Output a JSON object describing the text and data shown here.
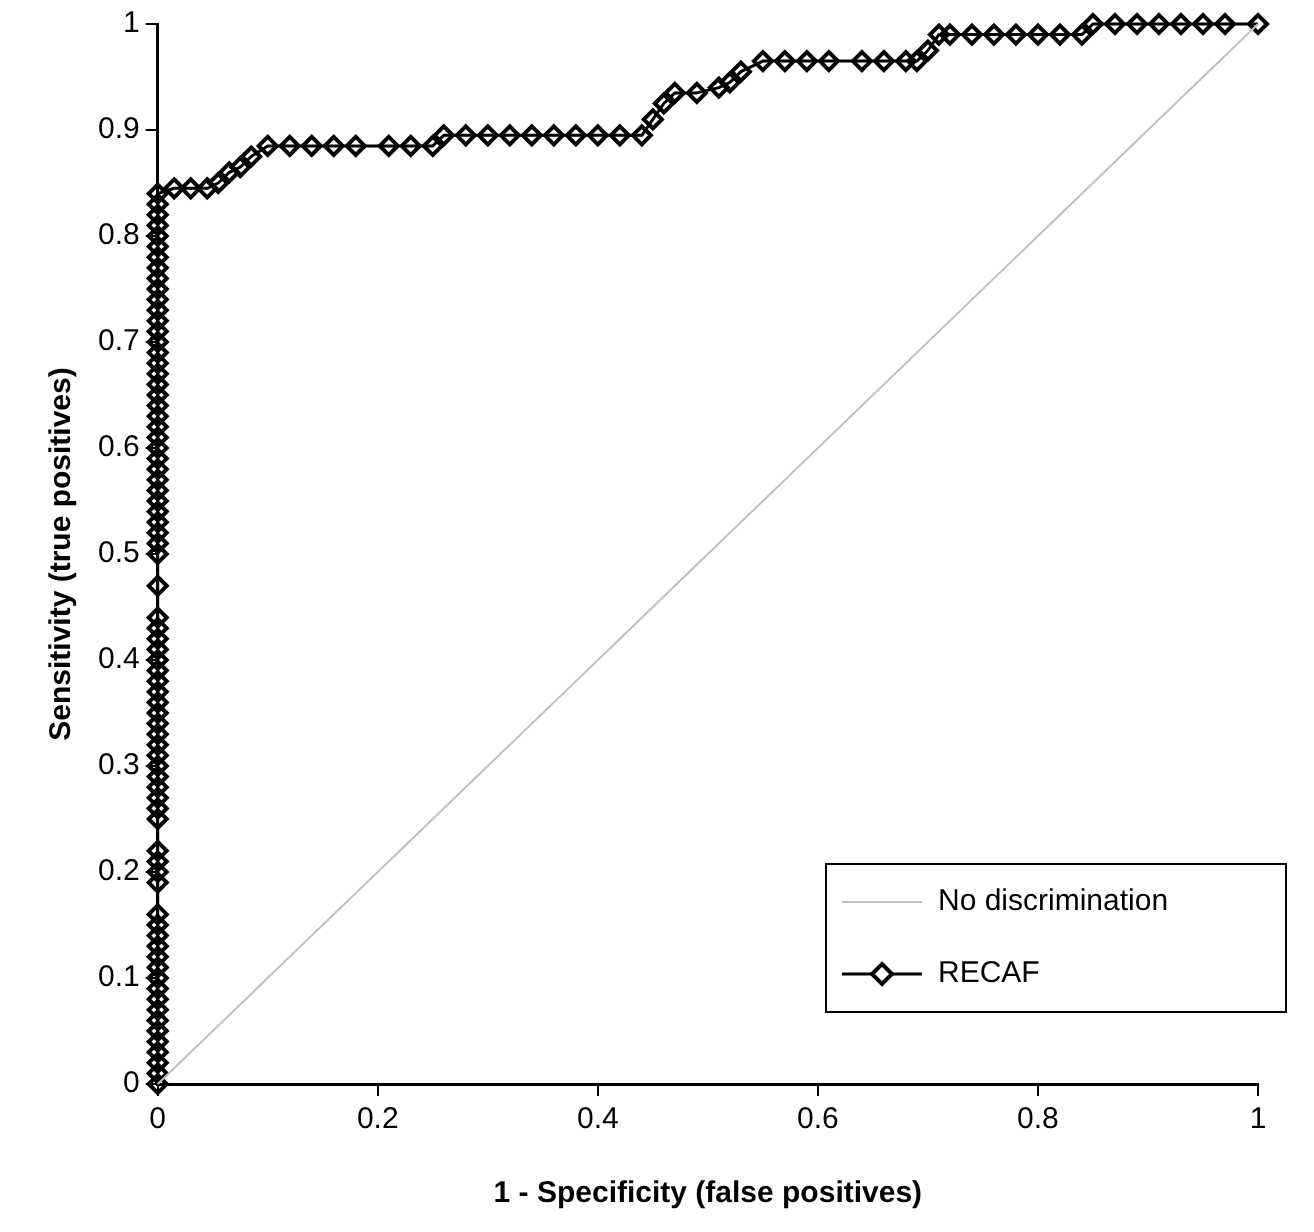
{
  "chart_data": {
    "type": "line",
    "xlabel": "1 - Specificity (false positives)",
    "ylabel": "Sensitivity (true positives)",
    "xlim": [
      0,
      1
    ],
    "ylim": [
      0,
      1
    ],
    "xticks": [
      0,
      0.2,
      0.4,
      0.6,
      0.8,
      1
    ],
    "yticks": [
      0,
      0.1,
      0.2,
      0.3,
      0.4,
      0.5,
      0.6,
      0.7,
      0.8,
      0.9,
      1
    ],
    "grid": false,
    "legend": "bottom right",
    "series": [
      {
        "name": "No discrimination",
        "color": "#c0c0c0",
        "marker": "none",
        "x": [
          0,
          1
        ],
        "values": [
          0,
          1
        ]
      },
      {
        "name": "RECAF",
        "color": "#000000",
        "marker": "diamond",
        "x": [
          0,
          0,
          0,
          0,
          0,
          0,
          0,
          0,
          0,
          0,
          0,
          0,
          0,
          0,
          0,
          0,
          0,
          0,
          0,
          0,
          0,
          0,
          0,
          0,
          0,
          0,
          0,
          0,
          0,
          0,
          0,
          0,
          0,
          0,
          0,
          0,
          0,
          0,
          0,
          0,
          0,
          0,
          0,
          0,
          0,
          0,
          0,
          0,
          0,
          0,
          0,
          0,
          0,
          0,
          0,
          0,
          0,
          0,
          0,
          0,
          0,
          0,
          0,
          0,
          0,
          0,
          0,
          0,
          0,
          0,
          0,
          0,
          0,
          0,
          0,
          0,
          0,
          0.015,
          0.03,
          0.045,
          0.055,
          0.065,
          0.075,
          0.085,
          0.1,
          0.12,
          0.14,
          0.16,
          0.18,
          0.21,
          0.23,
          0.25,
          0.26,
          0.28,
          0.3,
          0.32,
          0.34,
          0.36,
          0.38,
          0.4,
          0.42,
          0.44,
          0.45,
          0.46,
          0.47,
          0.49,
          0.51,
          0.52,
          0.53,
          0.55,
          0.57,
          0.59,
          0.61,
          0.64,
          0.66,
          0.68,
          0.69,
          0.7,
          0.71,
          0.72,
          0.74,
          0.76,
          0.78,
          0.8,
          0.82,
          0.84,
          0.85,
          0.87,
          0.89,
          0.91,
          0.93,
          0.95,
          0.97,
          1
        ],
        "values": [
          0,
          0.01,
          0.02,
          0.03,
          0.04,
          0.05,
          0.06,
          0.07,
          0.08,
          0.09,
          0.1,
          0.11,
          0.12,
          0.13,
          0.14,
          0.15,
          0.16,
          0.19,
          0.2,
          0.21,
          0.22,
          0.25,
          0.26,
          0.27,
          0.28,
          0.29,
          0.3,
          0.31,
          0.32,
          0.33,
          0.34,
          0.35,
          0.36,
          0.37,
          0.38,
          0.39,
          0.4,
          0.41,
          0.42,
          0.43,
          0.44,
          0.47,
          0.5,
          0.51,
          0.52,
          0.53,
          0.54,
          0.55,
          0.56,
          0.57,
          0.58,
          0.59,
          0.6,
          0.61,
          0.62,
          0.63,
          0.64,
          0.65,
          0.66,
          0.67,
          0.68,
          0.69,
          0.7,
          0.71,
          0.72,
          0.73,
          0.74,
          0.75,
          0.76,
          0.77,
          0.78,
          0.79,
          0.8,
          0.81,
          0.82,
          0.83,
          0.84,
          0.845,
          0.845,
          0.845,
          0.85,
          0.86,
          0.865,
          0.875,
          0.885,
          0.885,
          0.885,
          0.885,
          0.885,
          0.885,
          0.885,
          0.885,
          0.895,
          0.895,
          0.895,
          0.895,
          0.895,
          0.895,
          0.895,
          0.895,
          0.895,
          0.895,
          0.91,
          0.925,
          0.935,
          0.935,
          0.94,
          0.945,
          0.955,
          0.965,
          0.965,
          0.965,
          0.965,
          0.965,
          0.965,
          0.965,
          0.965,
          0.975,
          0.99,
          0.99,
          0.99,
          0.99,
          0.99,
          0.99,
          0.99,
          0.99,
          1,
          1,
          1,
          1,
          1,
          1,
          1,
          1
        ]
      }
    ]
  }
}
